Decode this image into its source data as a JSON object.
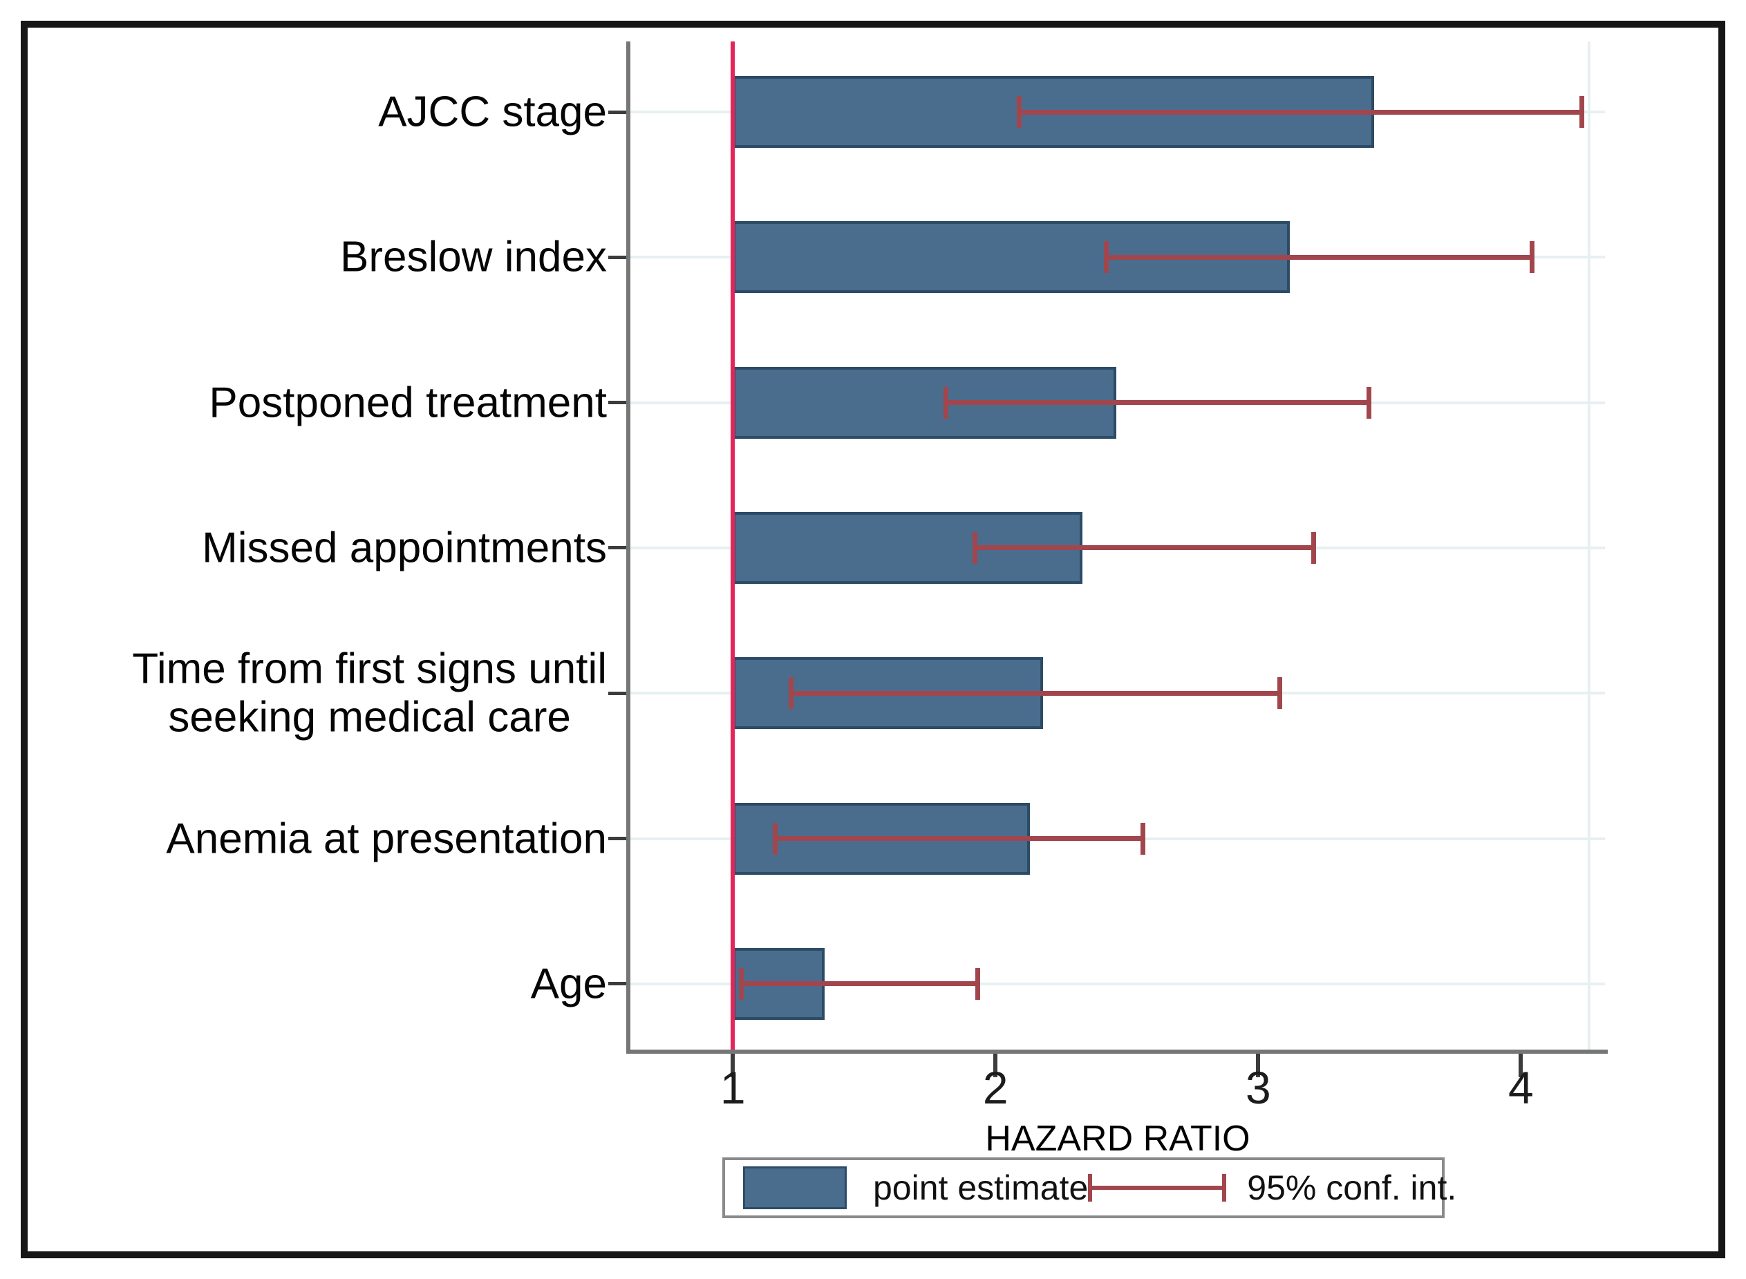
{
  "chart_data": {
    "type": "bar",
    "orientation": "horizontal",
    "title": "",
    "xlabel": "HAZARD RATIO",
    "x_ticks": [
      1,
      2,
      3,
      4
    ],
    "xlim": [
      0.61,
      4.32
    ],
    "reference_line_x": 1,
    "grid": "light horizontal gridline per category",
    "categories": [
      "AJCC stage",
      "Breslow index",
      "Postponed treatment",
      "Missed appointments",
      "Time from first signs until\nseeking medical care",
      "Anemia at presentation",
      "Age"
    ],
    "series": [
      {
        "name": "point estimate",
        "type": "bar",
        "values": [
          3.44,
          3.12,
          2.46,
          2.33,
          2.18,
          2.13,
          1.35
        ]
      },
      {
        "name": "95% conf. int.",
        "type": "error-bar",
        "low": [
          2.09,
          2.42,
          1.81,
          1.92,
          1.22,
          1.16,
          1.03
        ],
        "high": [
          4.23,
          4.04,
          3.42,
          3.21,
          3.08,
          2.56,
          1.93
        ]
      }
    ],
    "legend": {
      "position": "bottom",
      "entries": [
        {
          "label": "point estimate",
          "swatch": "bar"
        },
        {
          "label": "95% conf. int.",
          "swatch": "error-bar"
        }
      ]
    },
    "colors": {
      "bar_fill": "#4a6d8e",
      "bar_border": "#2c4b66",
      "error_bar": "#a2464e",
      "reference_line": "#e4255a",
      "gridline": "#e6f0f2",
      "axis": "#767676",
      "text": "#000000"
    }
  }
}
